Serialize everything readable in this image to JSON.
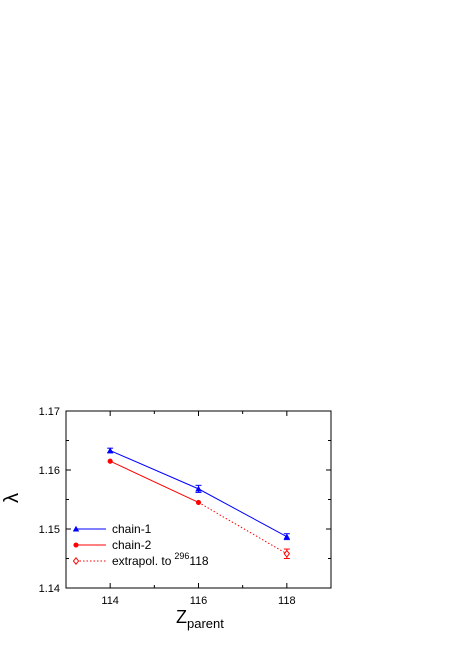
{
  "chart_data": {
    "type": "line",
    "xlabel": "Z",
    "xlabel_sub": "parent",
    "ylabel": "λ",
    "xlim": [
      113,
      119
    ],
    "ylim": [
      1.14,
      1.17
    ],
    "x_ticks": [
      114,
      116,
      118
    ],
    "y_ticks": [
      1.14,
      1.15,
      1.16,
      1.17
    ],
    "grid": false,
    "legend_position": "bottom-left",
    "series": [
      {
        "name": "chain-1",
        "color": "#0000ff",
        "line": "solid",
        "marker": "filled-triangle",
        "points": [
          {
            "x": 114,
            "y": 1.1633,
            "err": 0.0004
          },
          {
            "x": 116,
            "y": 1.1568,
            "err": 0.0006
          },
          {
            "x": 118,
            "y": 1.1487,
            "err": 0.0005
          }
        ]
      },
      {
        "name": "chain-2",
        "color": "#ff0000",
        "line": "solid",
        "marker": "filled-circle",
        "points": [
          {
            "x": 114,
            "y": 1.1615,
            "err": 0
          },
          {
            "x": 116,
            "y": 1.1545,
            "err": 0
          }
        ]
      },
      {
        "name": "extrapol. to",
        "name_sup": "296",
        "name_suffix": "118",
        "color": "#ff0000",
        "line": "dotted",
        "marker": "open-diamond",
        "points": [
          {
            "x": 116,
            "y": 1.1545,
            "err": 0
          },
          {
            "x": 118,
            "y": 1.1458,
            "err": 0.0008
          }
        ]
      }
    ]
  }
}
